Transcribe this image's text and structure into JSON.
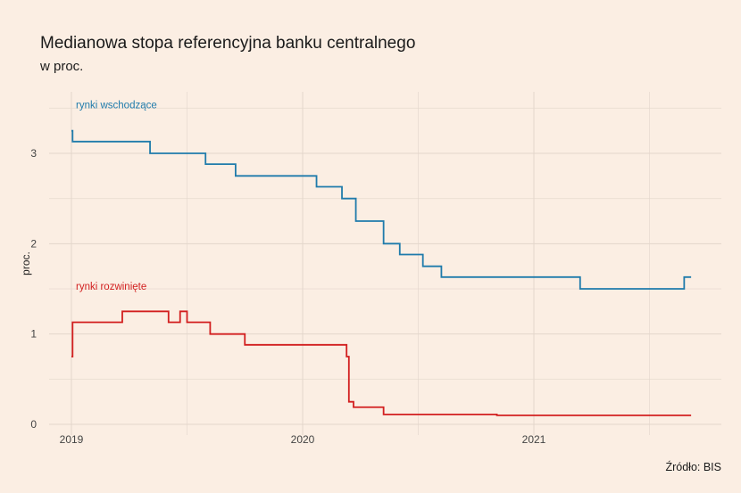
{
  "header": {
    "title": "Medianowa stopa referencyjna banku centralnego",
    "subtitle": "w proc."
  },
  "footer": {
    "source": "Źródło:  BIS"
  },
  "chart_data": {
    "type": "line",
    "xlabel": "",
    "ylabel": "proc.",
    "xlim": [
      2018.9,
      2021.82
    ],
    "ylim": [
      -0.05,
      3.65
    ],
    "x_ticks": [
      {
        "value": 2019,
        "label": "2019"
      },
      {
        "value": 2020,
        "label": "2020"
      },
      {
        "value": 2021,
        "label": "2021"
      }
    ],
    "y_ticks": [
      {
        "value": 0,
        "label": "0"
      },
      {
        "value": 1,
        "label": "1"
      },
      {
        "value": 2,
        "label": "2"
      },
      {
        "value": 3,
        "label": "3"
      }
    ],
    "grid": true,
    "series": [
      {
        "name": "rynki wschodzące",
        "color": "#1f7bab",
        "step": true,
        "label_at": {
          "x": 2019.02,
          "y": 3.5
        },
        "points": [
          [
            2019.0,
            3.25
          ],
          [
            2019.005,
            3.13
          ],
          [
            2019.34,
            3.0
          ],
          [
            2019.58,
            2.88
          ],
          [
            2019.71,
            2.75
          ],
          [
            2020.06,
            2.63
          ],
          [
            2020.17,
            2.5
          ],
          [
            2020.23,
            2.25
          ],
          [
            2020.35,
            2.0
          ],
          [
            2020.42,
            1.88
          ],
          [
            2020.52,
            1.75
          ],
          [
            2020.6,
            1.63
          ],
          [
            2021.2,
            1.5
          ],
          [
            2021.65,
            1.63
          ],
          [
            2021.68,
            1.63
          ]
        ]
      },
      {
        "name": "rynki rozwinięte",
        "color": "#d21f1f",
        "step": true,
        "label_at": {
          "x": 2019.02,
          "y": 1.49
        },
        "points": [
          [
            2019.0,
            0.75
          ],
          [
            2019.005,
            1.13
          ],
          [
            2019.22,
            1.25
          ],
          [
            2019.42,
            1.13
          ],
          [
            2019.47,
            1.25
          ],
          [
            2019.5,
            1.13
          ],
          [
            2019.6,
            1.0
          ],
          [
            2019.75,
            0.88
          ],
          [
            2020.19,
            0.75
          ],
          [
            2020.2,
            0.25
          ],
          [
            2020.22,
            0.19
          ],
          [
            2020.35,
            0.11
          ],
          [
            2020.84,
            0.1
          ],
          [
            2021.68,
            0.1
          ]
        ]
      }
    ]
  }
}
